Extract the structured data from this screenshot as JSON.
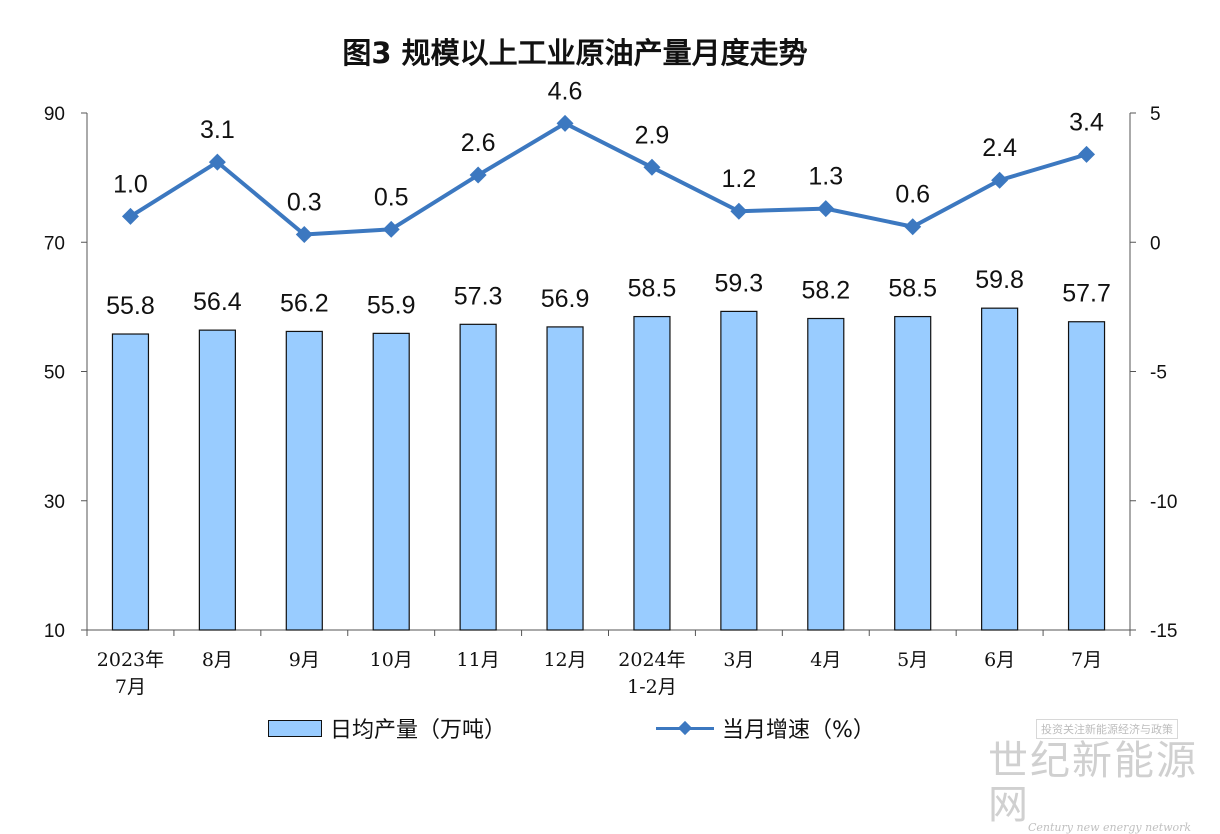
{
  "title": "图3 规模以上工业原油产量月度走势",
  "legend": {
    "bar_label": "日均产量（万吨）",
    "line_label": "当月增速（%）"
  },
  "watermark": {
    "top": "投资关注新能源经济与政策",
    "main": "世纪新能源网",
    "sub": "Century new energy network"
  },
  "chart_data": {
    "type": "bar+line",
    "title": "图3 规模以上工业原油产量月度走势",
    "categories": [
      [
        "2023年",
        "7月"
      ],
      [
        "8月"
      ],
      [
        "9月"
      ],
      [
        "10月"
      ],
      [
        "11月"
      ],
      [
        "12月"
      ],
      [
        "2024年",
        "1-2月"
      ],
      [
        "3月"
      ],
      [
        "4月"
      ],
      [
        "5月"
      ],
      [
        "6月"
      ],
      [
        "7月"
      ]
    ],
    "series": [
      {
        "name": "日均产量（万吨）",
        "type": "bar",
        "axis": "left",
        "color": "#99CCFF",
        "values": [
          55.8,
          56.4,
          56.2,
          55.9,
          57.3,
          56.9,
          58.5,
          59.3,
          58.2,
          58.5,
          59.8,
          57.7
        ],
        "labels": [
          "55.8",
          "56.4",
          "56.2",
          "55.9",
          "57.3",
          "56.9",
          "58.5",
          "59.3",
          "58.2",
          "58.5",
          "59.8",
          "57.7"
        ]
      },
      {
        "name": "当月增速（%）",
        "type": "line",
        "axis": "right",
        "color": "#3C78C0",
        "values": [
          1.0,
          3.1,
          0.3,
          0.5,
          2.6,
          4.6,
          2.9,
          1.2,
          1.3,
          0.6,
          2.4,
          3.4
        ],
        "labels": [
          "1.0",
          "3.1",
          "0.3",
          "0.5",
          "2.6",
          "4.6",
          "2.9",
          "1.2",
          "1.3",
          "0.6",
          "2.4",
          "3.4"
        ]
      }
    ],
    "left_axis": {
      "ylim": [
        10,
        90
      ],
      "ticks": [
        "10",
        "30",
        "50",
        "70",
        "90"
      ],
      "tick_values": [
        10,
        30,
        50,
        70,
        90
      ]
    },
    "right_axis": {
      "ylim": [
        -15,
        5
      ],
      "ticks": [
        "-15",
        "-10",
        "-5",
        "0",
        "5"
      ],
      "tick_values": [
        -15,
        -10,
        -5,
        0,
        5
      ]
    },
    "grid": false,
    "legend_position": "bottom"
  }
}
